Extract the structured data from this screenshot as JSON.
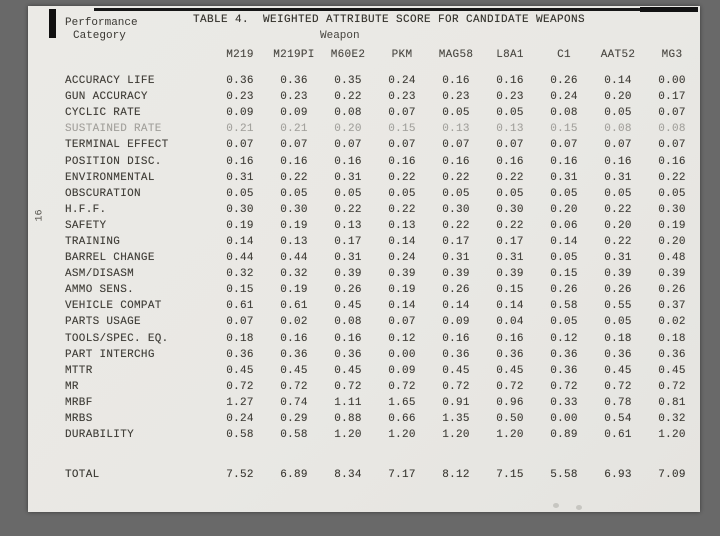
{
  "page": {
    "title": "TABLE 4.  WEIGHTED ATTRIBUTE SCORE FOR CANDIDATE WEAPONS",
    "row_header_line1": "Performance",
    "row_header_line2": "Category",
    "group_header": "Weapon",
    "page_number": "16"
  },
  "table": {
    "columns": [
      "M219",
      "M219PI",
      "M60E2",
      "PKM",
      "MAG58",
      "L8A1",
      "C1",
      "AAT52",
      "MG3"
    ],
    "rows": [
      {
        "label": "ACCURACY LIFE",
        "values": [
          "0.36",
          "0.36",
          "0.35",
          "0.24",
          "0.16",
          "0.16",
          "0.26",
          "0.14",
          "0.00"
        ]
      },
      {
        "label": "GUN ACCURACY",
        "values": [
          "0.23",
          "0.23",
          "0.22",
          "0.23",
          "0.23",
          "0.23",
          "0.24",
          "0.20",
          "0.17"
        ]
      },
      {
        "label": "CYCLIC RATE",
        "values": [
          "0.09",
          "0.09",
          "0.08",
          "0.07",
          "0.05",
          "0.05",
          "0.08",
          "0.05",
          "0.07"
        ]
      },
      {
        "label": "SUSTAINED RATE",
        "values": [
          "0.21",
          "0.21",
          "0.20",
          "0.15",
          "0.13",
          "0.13",
          "0.15",
          "0.08",
          "0.08"
        ],
        "faded": true
      },
      {
        "label": "TERMINAL EFFECT",
        "values": [
          "0.07",
          "0.07",
          "0.07",
          "0.07",
          "0.07",
          "0.07",
          "0.07",
          "0.07",
          "0.07"
        ]
      },
      {
        "label": "POSITION DISC.",
        "values": [
          "0.16",
          "0.16",
          "0.16",
          "0.16",
          "0.16",
          "0.16",
          "0.16",
          "0.16",
          "0.16"
        ]
      },
      {
        "label": "ENVIRONMENTAL",
        "values": [
          "0.31",
          "0.22",
          "0.31",
          "0.22",
          "0.22",
          "0.22",
          "0.31",
          "0.31",
          "0.22"
        ]
      },
      {
        "label": "OBSCURATION",
        "values": [
          "0.05",
          "0.05",
          "0.05",
          "0.05",
          "0.05",
          "0.05",
          "0.05",
          "0.05",
          "0.05"
        ]
      },
      {
        "label": "H.F.F.",
        "values": [
          "0.30",
          "0.30",
          "0.22",
          "0.22",
          "0.30",
          "0.30",
          "0.20",
          "0.22",
          "0.30"
        ]
      },
      {
        "label": "SAFETY",
        "values": [
          "0.19",
          "0.19",
          "0.13",
          "0.13",
          "0.22",
          "0.22",
          "0.06",
          "0.20",
          "0.19"
        ]
      },
      {
        "label": "TRAINING",
        "values": [
          "0.14",
          "0.13",
          "0.17",
          "0.14",
          "0.17",
          "0.17",
          "0.14",
          "0.22",
          "0.20"
        ]
      },
      {
        "label": "BARREL CHANGE",
        "values": [
          "0.44",
          "0.44",
          "0.31",
          "0.24",
          "0.31",
          "0.31",
          "0.05",
          "0.31",
          "0.48"
        ]
      },
      {
        "label": "ASM/DISASM",
        "values": [
          "0.32",
          "0.32",
          "0.39",
          "0.39",
          "0.39",
          "0.39",
          "0.15",
          "0.39",
          "0.39"
        ]
      },
      {
        "label": "AMMO SENS.",
        "values": [
          "0.15",
          "0.19",
          "0.26",
          "0.19",
          "0.26",
          "0.15",
          "0.26",
          "0.26",
          "0.26"
        ]
      },
      {
        "label": "VEHICLE COMPAT",
        "values": [
          "0.61",
          "0.61",
          "0.45",
          "0.14",
          "0.14",
          "0.14",
          "0.58",
          "0.55",
          "0.37"
        ]
      },
      {
        "label": "PARTS USAGE",
        "values": [
          "0.07",
          "0.02",
          "0.08",
          "0.07",
          "0.09",
          "0.04",
          "0.05",
          "0.05",
          "0.02"
        ]
      },
      {
        "label": "TOOLS/SPEC. EQ.",
        "values": [
          "0.18",
          "0.16",
          "0.16",
          "0.12",
          "0.16",
          "0.16",
          "0.12",
          "0.18",
          "0.18"
        ]
      },
      {
        "label": "PART INTERCHG",
        "values": [
          "0.36",
          "0.36",
          "0.36",
          "0.00",
          "0.36",
          "0.36",
          "0.36",
          "0.36",
          "0.36"
        ]
      },
      {
        "label": "MTTR",
        "values": [
          "0.45",
          "0.45",
          "0.45",
          "0.09",
          "0.45",
          "0.45",
          "0.36",
          "0.45",
          "0.45"
        ]
      },
      {
        "label": "MR",
        "values": [
          "0.72",
          "0.72",
          "0.72",
          "0.72",
          "0.72",
          "0.72",
          "0.72",
          "0.72",
          "0.72"
        ]
      },
      {
        "label": "MRBF",
        "values": [
          "1.27",
          "0.74",
          "1.11",
          "1.65",
          "0.91",
          "0.96",
          "0.33",
          "0.78",
          "0.81"
        ]
      },
      {
        "label": "MRBS",
        "values": [
          "0.24",
          "0.29",
          "0.88",
          "0.66",
          "1.35",
          "0.50",
          "0.00",
          "0.54",
          "0.32"
        ]
      },
      {
        "label": "DURABILITY",
        "values": [
          "0.58",
          "0.58",
          "1.20",
          "1.20",
          "1.20",
          "1.20",
          "0.89",
          "0.61",
          "1.20"
        ]
      }
    ],
    "total_row": {
      "label": "TOTAL",
      "values": [
        "7.52",
        "6.89",
        "8.34",
        "7.17",
        "8.12",
        "7.15",
        "5.58",
        "6.93",
        "7.09"
      ]
    }
  }
}
